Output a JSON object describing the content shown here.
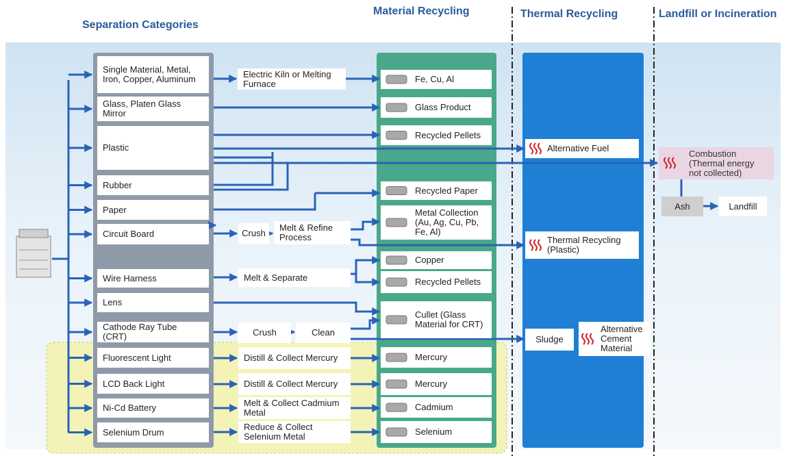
{
  "headers": {
    "material_recycling": "Material Recycling",
    "thermal_recycling": "Thermal Recycling",
    "landfill_or_incineration": "Landfill or Incineration",
    "separation_categories": "Separation Categories"
  },
  "categories": [
    "Single Material, Metal, Iron, Copper, Aluminum",
    "Glass, Platen Glass Mirror",
    "Plastic",
    "Rubber",
    "Paper",
    "Circuit Board",
    "Wire Harness",
    "Lens",
    "Cathode Ray Tube (CRT)",
    "Fluorescent Light",
    "LCD Back Light",
    "Ni-Cd Battery",
    "Selenium Drum"
  ],
  "processes": [
    "Electric Kiln or Melting Furnace",
    "Crush",
    "Melt & Refine Process",
    "Melt & Separate",
    "Crush",
    "Clean",
    "Distill & Collect Mercury",
    "Distill & Collect Mercury",
    "Melt & Collect Cadmium Metal",
    "Reduce & Collect Selenium Metal"
  ],
  "materials": [
    "Fe, Cu, Al",
    "Glass Product",
    "Recycled Pellets",
    "Recycled Paper",
    "Metal Collection (Au, Ag, Cu, Pb, Fe, Al)",
    "Copper",
    "Recycled Pellets",
    "Cullet (Glass Material for CRT)",
    "Mercury",
    "Mercury",
    "Cadmium",
    "Selenium"
  ],
  "thermal": [
    "Alternative Fuel",
    "Thermal Recycling (Plastic)",
    "Sludge",
    "Alternative Cement Material"
  ],
  "landfill": [
    "Combustion (Thermal energy not collected)",
    "Ash",
    "Landfill"
  ]
}
